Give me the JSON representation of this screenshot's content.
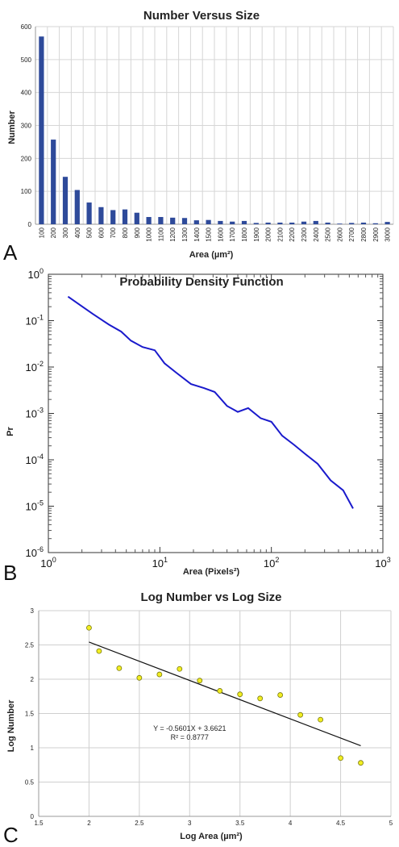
{
  "panels": {
    "A": {
      "letter": "A",
      "chart_data": {
        "type": "bar",
        "title": "Number Versus Size",
        "xlabel": "Area (µm²)",
        "ylabel": "Number",
        "ylim": [
          0,
          600
        ],
        "yticks": [
          0,
          100,
          200,
          300,
          400,
          500,
          600
        ],
        "grid": true,
        "color": "#2e4a9a",
        "categories": [
          "100",
          "200",
          "300",
          "400",
          "500",
          "600",
          "700",
          "800",
          "900",
          "1000",
          "1100",
          "1200",
          "1300",
          "1400",
          "1500",
          "1600",
          "1700",
          "1800",
          "1900",
          "2000",
          "2100",
          "2200",
          "2300",
          "2400",
          "2500",
          "2600",
          "2700",
          "2800",
          "2900",
          "3000"
        ],
        "values": [
          570,
          257,
          144,
          104,
          66,
          52,
          43,
          45,
          35,
          22,
          22,
          20,
          19,
          12,
          13,
          10,
          8,
          10,
          4,
          5,
          5,
          5,
          8,
          10,
          5,
          2,
          4,
          5,
          3,
          7
        ]
      }
    },
    "B": {
      "letter": "B",
      "chart_data": {
        "type": "line",
        "title": "Probability Density Function",
        "xlabel": "Area (Pixels²)",
        "ylabel": "Pr",
        "xscale": "log",
        "yscale": "log",
        "xlim": [
          1,
          1000
        ],
        "ylim": [
          1e-06,
          1
        ],
        "xticks": [
          {
            "base": "10",
            "exp": "0"
          },
          {
            "base": "10",
            "exp": "1"
          },
          {
            "base": "10",
            "exp": "2"
          },
          {
            "base": "10",
            "exp": "3"
          }
        ],
        "yticks": [
          {
            "base": "10",
            "exp": "0"
          },
          {
            "base": "10",
            "exp": "-1"
          },
          {
            "base": "10",
            "exp": "-2"
          },
          {
            "base": "10",
            "exp": "-3"
          },
          {
            "base": "10",
            "exp": "-4"
          },
          {
            "base": "10",
            "exp": "-5"
          },
          {
            "base": "10",
            "exp": "-6"
          }
        ],
        "color": "#1a1acc",
        "x": [
          1.5,
          2.5,
          3.5,
          4.5,
          5.5,
          7,
          9,
          11,
          14,
          19,
          25,
          31,
          40,
          50,
          62,
          80,
          100,
          125,
          160,
          200,
          260,
          340,
          440,
          540
        ],
        "y": [
          0.33,
          0.14,
          0.082,
          0.058,
          0.037,
          0.027,
          0.023,
          0.012,
          0.0076,
          0.0043,
          0.0035,
          0.0029,
          0.00145,
          0.00108,
          0.0013,
          0.00079,
          0.00066,
          0.00033,
          0.00021,
          0.000135,
          8.2e-05,
          3.6e-05,
          2.2e-05,
          8.9e-06
        ]
      }
    },
    "C": {
      "letter": "C",
      "chart_data": {
        "type": "scatter",
        "title": "Log Number vs Log Size",
        "xlabel": "Log Area (µm²)",
        "ylabel": "Log Number",
        "xlim": [
          1.5,
          5
        ],
        "ylim": [
          0,
          3
        ],
        "xticks": [
          "1.5",
          "2",
          "2.5",
          "3",
          "3.5",
          "4",
          "4.5",
          "5"
        ],
        "yticks": [
          "0",
          "0.5",
          "1",
          "1.5",
          "2",
          "2.5",
          "3"
        ],
        "grid": true,
        "point_color": "#f2ee22",
        "x": [
          2.0,
          2.1,
          2.3,
          2.5,
          2.7,
          2.9,
          3.1,
          3.3,
          3.5,
          3.7,
          3.9,
          4.1,
          4.3,
          4.5,
          4.7
        ],
        "y": [
          2.75,
          2.41,
          2.16,
          2.02,
          2.07,
          2.15,
          1.98,
          1.83,
          1.78,
          1.72,
          1.77,
          1.48,
          1.41,
          0.85,
          0.78
        ],
        "trendline": {
          "slope": -0.5601,
          "intercept": 3.6621,
          "x_range": [
            2.0,
            4.7
          ]
        },
        "equation": "Y = -0.5601X + 3.6621",
        "r_squared": "R² = 0.8777"
      }
    }
  }
}
